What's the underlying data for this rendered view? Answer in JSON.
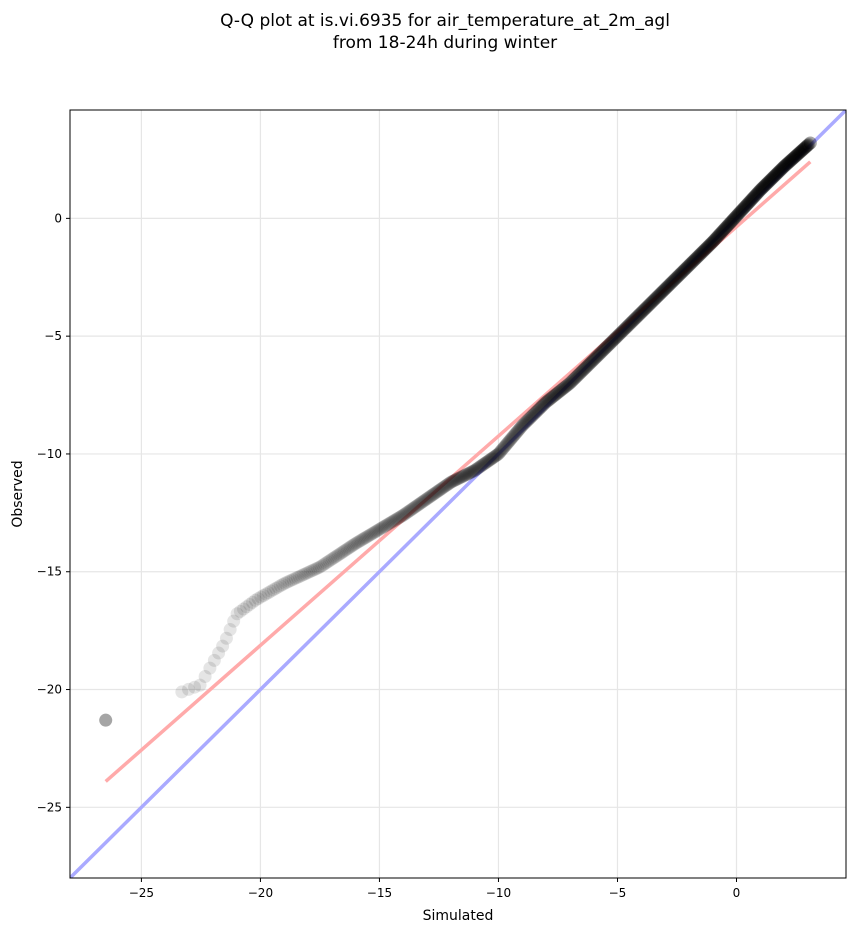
{
  "chart_data": {
    "type": "scatter",
    "title": "Q-Q plot at is.vi.6935 for air_temperature_at_2m_agl",
    "subtitle": "from 18-24h during winter",
    "xlabel": "Simulated",
    "ylabel": "Observed",
    "xlim": [
      -28.0,
      4.6
    ],
    "ylim": [
      -28.0,
      4.6
    ],
    "xticks": [
      -25,
      -20,
      -15,
      -10,
      -5,
      0
    ],
    "yticks": [
      -25,
      -20,
      -15,
      -10,
      -5,
      0
    ],
    "xtick_labels": [
      "−25",
      "−20",
      "−15",
      "−10",
      "−5",
      "0"
    ],
    "ytick_labels": [
      "−25",
      "−20",
      "−15",
      "−10",
      "−5",
      "0"
    ],
    "grid": true,
    "colors": {
      "points": "#000000",
      "identity_line": "#aaaaff",
      "fit_line": "#ffaaaa",
      "grid": "#e6e6e6"
    },
    "reference_lines": [
      {
        "kind": "identity",
        "x": [
          -28.0,
          4.6
        ],
        "y": [
          -28.0,
          4.6
        ],
        "color": "#aaaaff"
      },
      {
        "kind": "fit",
        "x": [
          -26.5,
          3.1
        ],
        "y": [
          -23.9,
          2.4
        ],
        "color": "#ffaaaa"
      }
    ],
    "quantile_anchors": {
      "x": [
        -26.5,
        -22.5,
        -22.3,
        -21.5,
        -21.0,
        -20.2,
        -19.0,
        -17.5,
        -16.0,
        -15.0,
        -14.0,
        -13.0,
        -12.0,
        -11.0,
        -10.0,
        -9.0,
        -8.0,
        -7.0,
        -6.0,
        -5.0,
        -4.0,
        -3.0,
        -2.0,
        -1.0,
        0.0,
        1.0,
        2.0,
        3.1
      ],
      "y": [
        -21.3,
        -19.8,
        -19.4,
        -18.0,
        -16.8,
        -16.2,
        -15.5,
        -14.8,
        -13.8,
        -13.2,
        -12.6,
        -11.9,
        -11.2,
        -10.7,
        -10.0,
        -8.8,
        -7.8,
        -7.0,
        -6.0,
        -5.0,
        -4.0,
        -3.0,
        -2.0,
        -1.0,
        0.1,
        1.2,
        2.2,
        3.2
      ]
    },
    "n_points": 900
  }
}
